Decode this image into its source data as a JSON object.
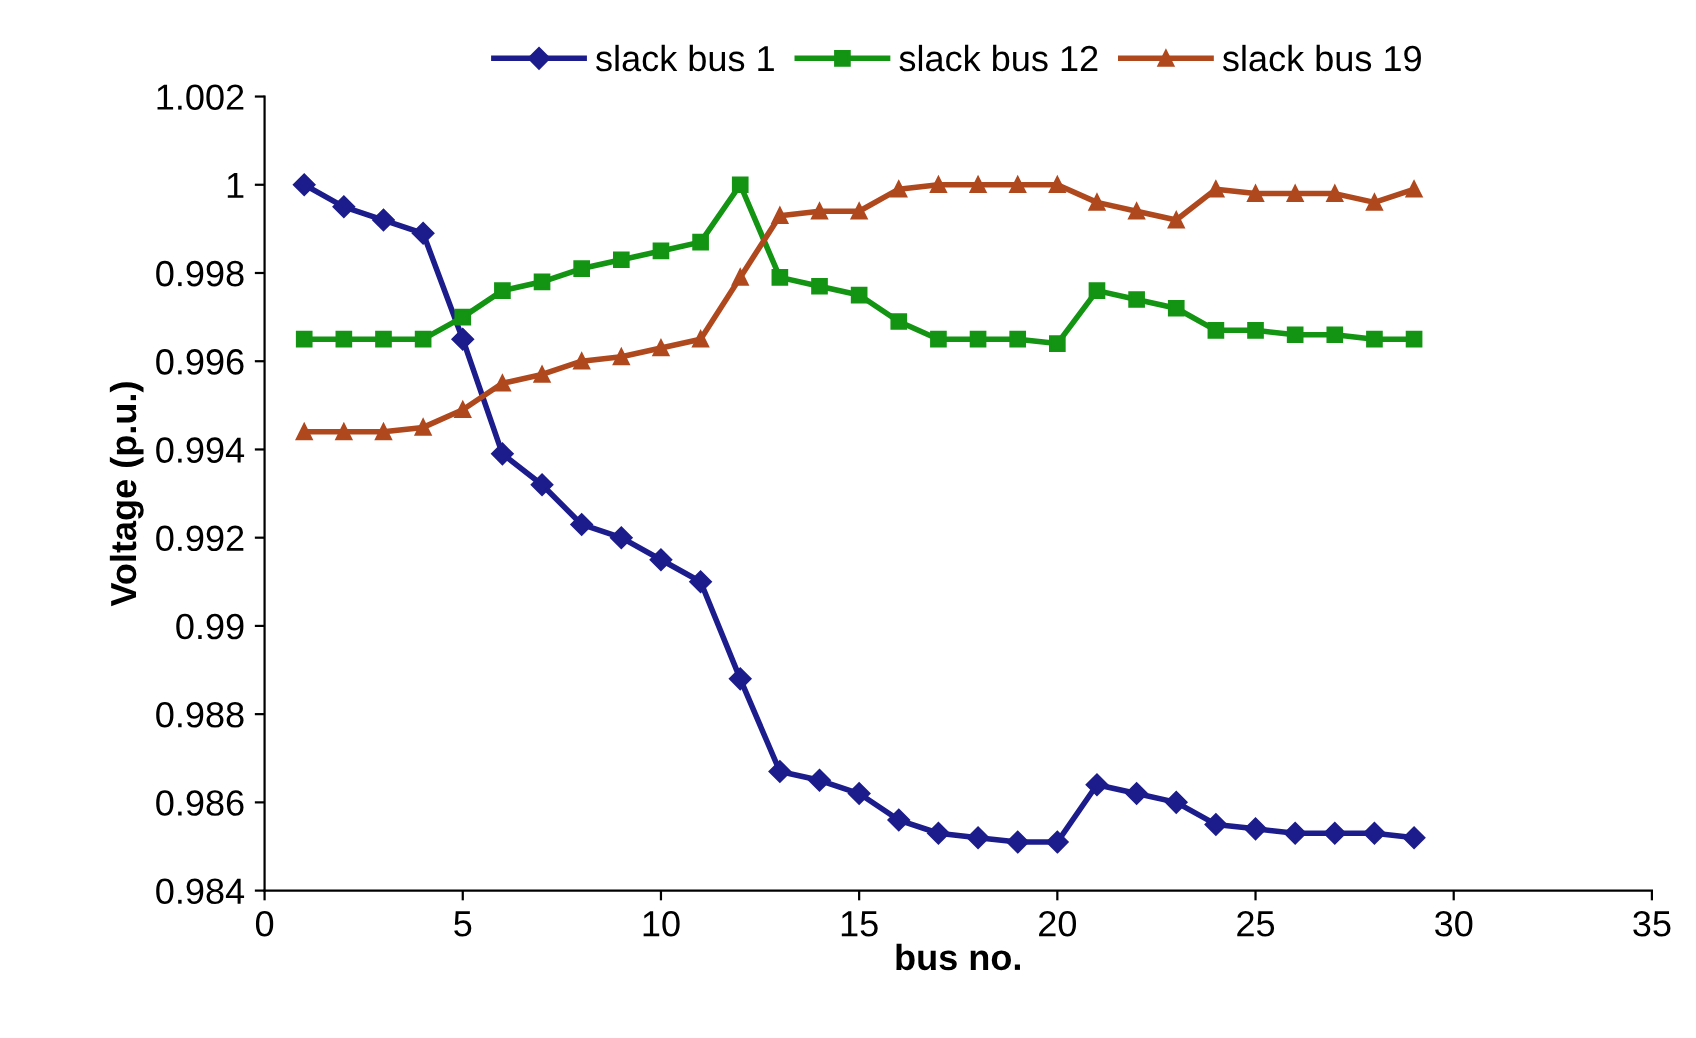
{
  "chart_data": {
    "type": "line",
    "xlabel": "bus no.",
    "ylabel": "Voltage (p.u.)",
    "x": [
      1,
      2,
      3,
      4,
      5,
      6,
      7,
      8,
      9,
      10,
      11,
      12,
      13,
      14,
      15,
      16,
      17,
      18,
      19,
      20,
      21,
      22,
      23,
      24,
      25,
      26,
      27,
      28,
      29
    ],
    "series": [
      {
        "name": "slack bus 1",
        "color": "#1c1c8c",
        "marker": "diamond",
        "values": [
          1.0,
          0.9995,
          0.9992,
          0.9989,
          0.9965,
          0.9939,
          0.9932,
          0.9923,
          0.992,
          0.9915,
          0.991,
          0.9888,
          0.9867,
          0.9865,
          0.9862,
          0.9856,
          0.9853,
          0.9852,
          0.9851,
          0.9851,
          0.9864,
          0.9862,
          0.986,
          0.9855,
          0.9854,
          0.9853,
          0.9853,
          0.9853,
          0.9852
        ]
      },
      {
        "name": "slack bus 12",
        "color": "#139413",
        "marker": "square",
        "values": [
          0.9965,
          0.9965,
          0.9965,
          0.9965,
          0.997,
          0.9976,
          0.9978,
          0.9981,
          0.9983,
          0.9985,
          0.9987,
          1.0,
          0.9979,
          0.9977,
          0.9975,
          0.9969,
          0.9965,
          0.9965,
          0.9965,
          0.9964,
          0.9976,
          0.9974,
          0.9972,
          0.9967,
          0.9967,
          0.9966,
          0.9966,
          0.9965,
          0.9965
        ]
      },
      {
        "name": "slack bus 19",
        "color": "#b0481e",
        "marker": "triangle",
        "values": [
          0.9944,
          0.9944,
          0.9944,
          0.9945,
          0.9949,
          0.9955,
          0.9957,
          0.996,
          0.9961,
          0.9963,
          0.9965,
          0.9979,
          0.9993,
          0.9994,
          0.9994,
          0.9999,
          1.0,
          1.0,
          1.0,
          1.0,
          0.9996,
          0.9994,
          0.9992,
          0.9999,
          0.9998,
          0.9998,
          0.9998,
          0.9996,
          0.9999
        ]
      }
    ],
    "xlim": [
      0,
      35
    ],
    "xticks": [
      0,
      5,
      10,
      15,
      20,
      25,
      30,
      35
    ],
    "ylim": [
      0.984,
      1.002
    ],
    "yticks": [
      0.984,
      0.986,
      0.988,
      0.99,
      0.992,
      0.994,
      0.996,
      0.998,
      1,
      1.002
    ],
    "grid": false,
    "legend": "top",
    "line_style": "solid"
  }
}
